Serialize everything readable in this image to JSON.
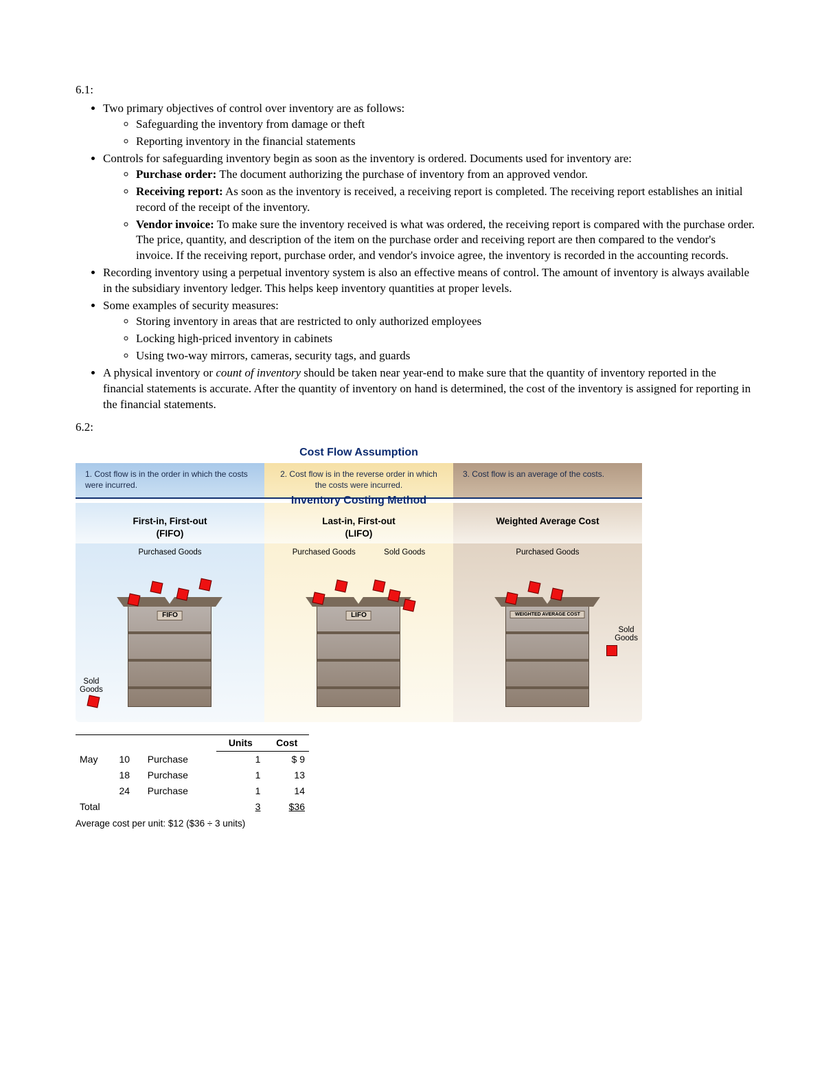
{
  "section_61": {
    "label": "6.1:",
    "b1": "Two primary objectives of control over inventory are as follows:",
    "b1a": "Safeguarding the inventory from damage or theft",
    "b1b": "Reporting inventory in the financial statements",
    "b2": "Controls for safeguarding inventory begin as soon as the inventory is ordered. Documents used for inventory are:",
    "b2a_lead": "Purchase order:",
    "b2a_rest": " The document authorizing the purchase of inventory from an approved vendor.",
    "b2b_lead": "Receiving report:",
    "b2b_rest": " As soon as the inventory is received, a receiving report is completed. The receiving report establishes an initial record of the receipt of the inventory.",
    "b2c_lead": "Vendor invoice:",
    "b2c_rest": " To make sure the inventory received is what was ordered, the receiving report is compared with the purchase order. The price, quantity, and description of the item on the purchase order and receiving report are then compared to the vendor's invoice. If the receiving report, purchase order, and vendor's invoice agree, the inventory is recorded in the accounting records.",
    "b3": "Recording inventory using a perpetual inventory system is also an effective means of control. The amount of inventory is always available in the subsidiary inventory ledger. This helps keep inventory quantities at proper levels.",
    "b4": "Some examples of security measures:",
    "b4a": "Storing inventory in areas that are restricted to only authorized employees",
    "b4b": "Locking high-priced inventory in cabinets",
    "b4c": "Using two-way mirrors, cameras, security tags, and guards",
    "b5_pre": "A physical inventory or ",
    "b5_italic": "count of inventory",
    "b5_post": " should be taken near year-end to make sure that the quantity of inventory reported in the financial statements is accurate. After the quantity of inventory on hand is determined, the cost of the inventory is assigned for reporting in the financial statements."
  },
  "section_62": {
    "label": "6.2:"
  },
  "diagram": {
    "title_top": "Cost Flow Assumption",
    "title_mid": "Inventory Costing Method",
    "columns": [
      {
        "bg_top": "linear-gradient(#a9c9ea, #cadff2)",
        "bg_mid": "linear-gradient(#d9e9f7, #f5f9fc)",
        "assumption": "1. Cost flow is in the order in which the costs were incurred.",
        "method_line1": "First-in, First-out",
        "method_line2": "(FIFO)",
        "sign": "FIFO",
        "labels_top_left": "Purchased Goods",
        "labels_top_right": "",
        "sold_goods_pos": "left-bottom"
      },
      {
        "bg_top": "linear-gradient(#f6e0a6, #faecc2)",
        "bg_mid": "linear-gradient(#fbf1d4, #fdfaf0)",
        "assumption": "2. Cost flow is in the reverse order in which the costs were incurred.",
        "method_line1": "Last-in, First-out",
        "method_line2": "(LIFO)",
        "sign": "LIFO",
        "labels_top_left": "Purchased Goods",
        "labels_top_right": "Sold Goods",
        "sold_goods_pos": "none"
      },
      {
        "bg_top": "linear-gradient(#b39a83, #cdb9a3)",
        "bg_mid": "linear-gradient(#e1d3c3, #f6f1ea)",
        "assumption": "3. Cost flow is an average of the costs.",
        "method_line1": "Weighted Average Cost",
        "method_line2": "",
        "sign": "WEIGHTED AVERAGE COST",
        "labels_top_left": "Purchased Goods",
        "labels_top_right": "",
        "sold_goods_pos": "right-mid"
      }
    ],
    "sold_label": "Sold Goods",
    "rule_color": "#12306f"
  },
  "ptable": {
    "headers": {
      "units": "Units",
      "cost": "Cost"
    },
    "month": "May",
    "rows": [
      {
        "day": "10",
        "desc": "Purchase",
        "units": "1",
        "cost": "$ 9"
      },
      {
        "day": "18",
        "desc": "Purchase",
        "units": "1",
        "cost": "13"
      },
      {
        "day": "24",
        "desc": "Purchase",
        "units": "1",
        "cost": "14"
      }
    ],
    "total_label": "Total",
    "total_units": "3",
    "total_cost": "$36",
    "avg_line": "Average cost per unit: $12 ($36 ÷ 3 units)"
  }
}
